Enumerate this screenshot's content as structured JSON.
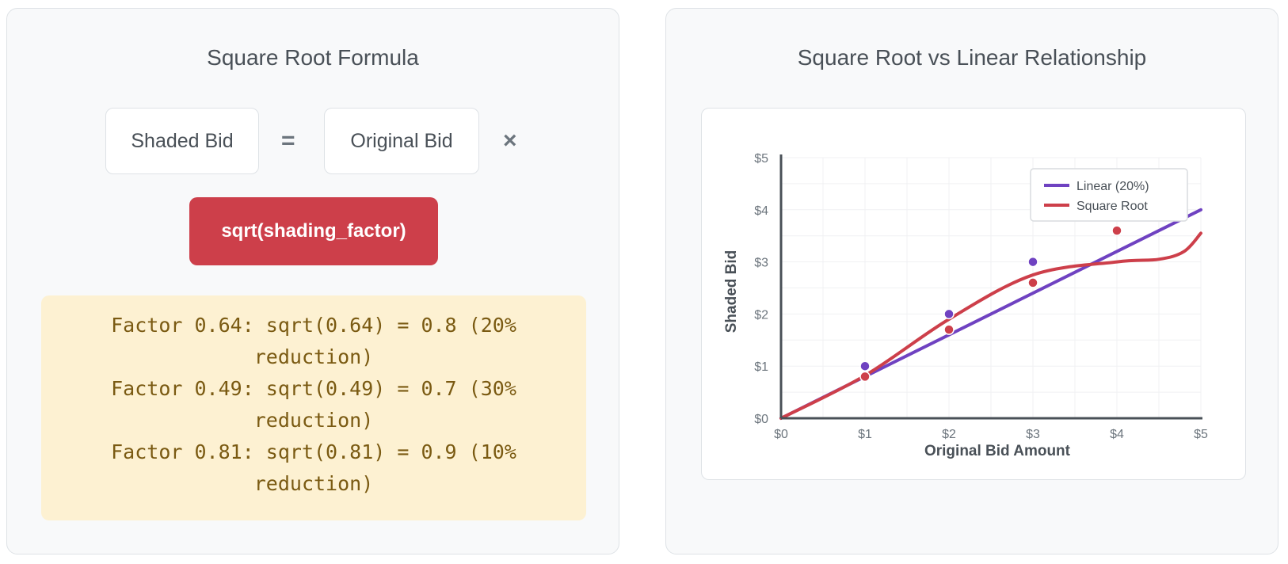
{
  "left": {
    "title": "Square Root Formula",
    "formula": {
      "lhs": "Shaded Bid",
      "equals": "=",
      "rhs": "Original Bid",
      "times": "×",
      "factor": "sqrt(shading_factor)"
    },
    "examples": [
      {
        "main": "Factor 0.64: sqrt(0.64) = 0.8 (20%",
        "cont": "reduction)"
      },
      {
        "main": "Factor 0.49: sqrt(0.49) = 0.7 (30%",
        "cont": "reduction)"
      },
      {
        "main": "Factor 0.81: sqrt(0.81) = 0.9 (10%",
        "cont": "reduction)"
      }
    ]
  },
  "right": {
    "title": "Square Root vs Linear Relationship"
  },
  "chart_data": {
    "type": "line",
    "title": "Square Root vs Linear Relationship",
    "xlabel": "Original Bid Amount",
    "ylabel": "Shaded Bid",
    "xlim": [
      0,
      5
    ],
    "ylim": [
      0,
      5
    ],
    "x_ticks": [
      "$0",
      "$1",
      "$2",
      "$3",
      "$4",
      "$5"
    ],
    "y_ticks": [
      "$0",
      "$1",
      "$2",
      "$3",
      "$4",
      "$5"
    ],
    "grid": true,
    "legend_position": "top-right",
    "series": [
      {
        "name": "Linear (20%)",
        "color": "#6f42c1",
        "line": {
          "x": [
            0,
            5
          ],
          "y": [
            0,
            4
          ]
        },
        "points": {
          "x": [
            1,
            2,
            3
          ],
          "y": [
            1.0,
            2.0,
            3.0
          ]
        }
      },
      {
        "name": "Square Root",
        "color": "#cd3f4a",
        "line": {
          "x": [
            0,
            1,
            2,
            3,
            4,
            4.5,
            4.8,
            5
          ],
          "y": [
            0,
            0.82,
            1.9,
            2.75,
            3.0,
            3.05,
            3.2,
            3.55
          ]
        },
        "points": {
          "x": [
            1,
            2,
            3,
            4
          ],
          "y": [
            0.8,
            1.7,
            2.6,
            3.6
          ]
        }
      }
    ]
  }
}
